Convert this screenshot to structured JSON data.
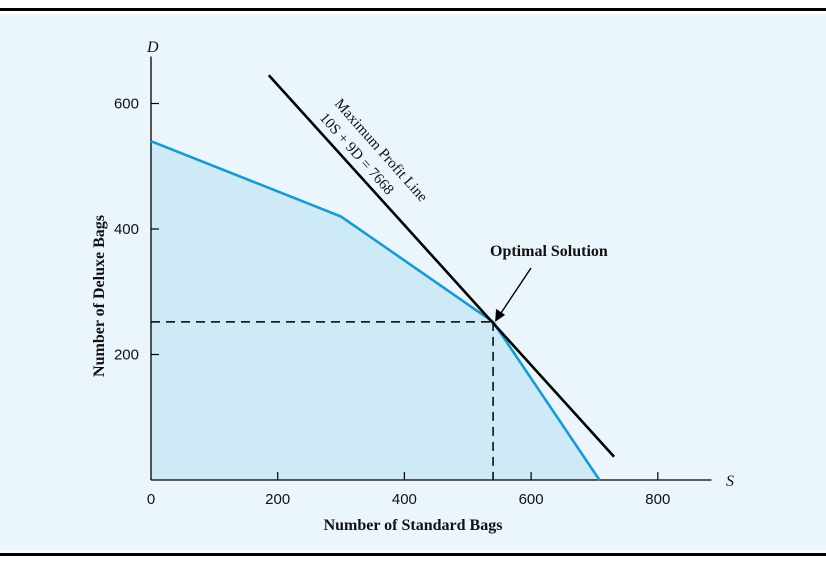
{
  "chart_data": {
    "type": "area",
    "x_axis": {
      "variable": "S",
      "label": "Number of Standard Bags",
      "range": [
        0,
        880
      ],
      "ticks": [
        0,
        200,
        400,
        600,
        800
      ]
    },
    "y_axis": {
      "variable": "D",
      "label": "Number of Deluxe Bags",
      "range": [
        0,
        675
      ],
      "ticks": [
        200,
        400,
        600
      ]
    },
    "feasible_region": {
      "boundary": [
        [
          0,
          540
        ],
        [
          300,
          420
        ],
        [
          540,
          252
        ],
        [
          708,
          0
        ]
      ],
      "fill": "#cdeaf6",
      "stroke": "#1a9ad0"
    },
    "profit_line": {
      "equation_label": "10S + 9D = 7668",
      "name_label": "Maximum Profit Line",
      "points": [
        [
          186,
          645
        ],
        [
          731,
          37
        ]
      ],
      "color": "#000000"
    },
    "optimal_point": {
      "s": 540,
      "d": 252,
      "label": "Optimal Solution"
    },
    "grid": false
  }
}
